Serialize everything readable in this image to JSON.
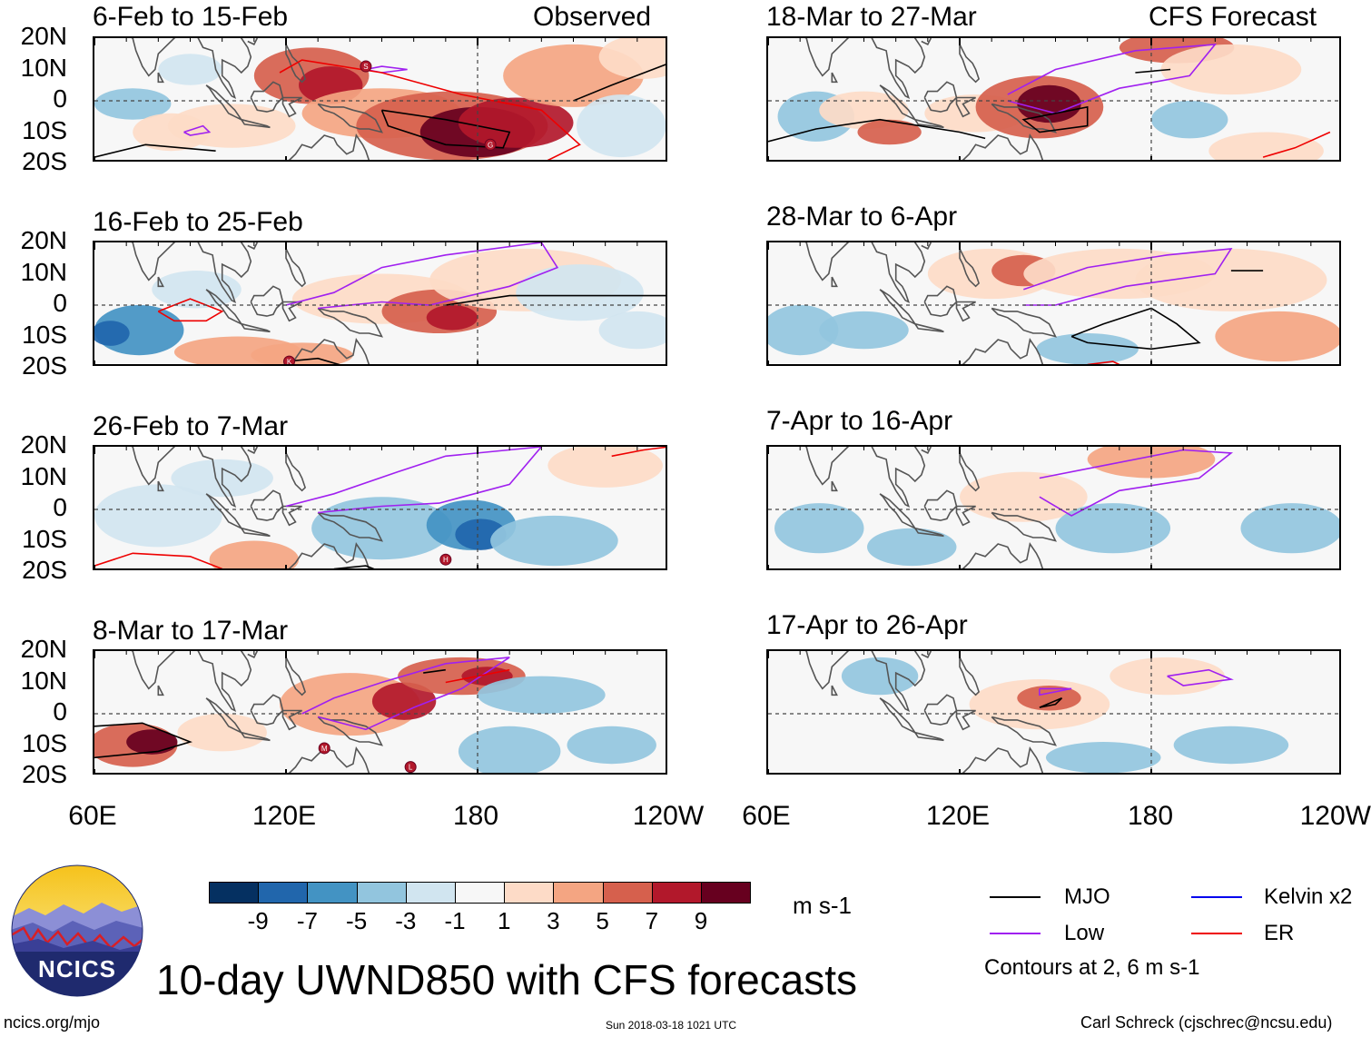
{
  "chart_data": {
    "type": "heatmap",
    "title": "10-day UWND850 with CFS forecasts",
    "variable": "850 hPa zonal wind anomaly",
    "units": "m s-1",
    "x_tick_labels": [
      "60E",
      "120E",
      "180",
      "120W"
    ],
    "y_tick_labels": [
      "20N",
      "10N",
      "0",
      "10S",
      "20S"
    ],
    "x_range_deg_east": [
      60,
      240
    ],
    "y_range_deg": [
      -20,
      20
    ],
    "colorbar": {
      "labels": [
        "-9",
        "-7",
        "-5",
        "-3",
        "-1",
        "1",
        "3",
        "5",
        "7",
        "9"
      ],
      "colors": [
        "#053061",
        "#2166ac",
        "#4393c3",
        "#92c5de",
        "#d1e5f0",
        "#f7f7f7",
        "#fddbc7",
        "#f4a582",
        "#d6604d",
        "#b2182b",
        "#67001f"
      ]
    },
    "columns": [
      {
        "header": "Observed",
        "panels": [
          {
            "title": "6-Feb to 15-Feb",
            "storms": [
              {
                "label": "S",
                "lon": 145,
                "lat": 11
              },
              {
                "label": "G",
                "lon": 184,
                "lat": -14
              }
            ]
          },
          {
            "title": "16-Feb to 25-Feb",
            "storms": [
              {
                "label": "K",
                "lon": 121,
                "lat": -18
              }
            ]
          },
          {
            "title": "26-Feb to 7-Mar",
            "storms": [
              {
                "label": "H",
                "lon": 170,
                "lat": -16
              }
            ]
          },
          {
            "title": "8-Mar to 17-Mar",
            "storms": [
              {
                "label": "M",
                "lon": 132,
                "lat": -11
              },
              {
                "label": "L",
                "lon": 159,
                "lat": -17
              }
            ]
          }
        ]
      },
      {
        "header": "CFS Forecast",
        "panels": [
          {
            "title": "18-Mar to 27-Mar",
            "storms": []
          },
          {
            "title": "28-Mar to 6-Apr",
            "storms": []
          },
          {
            "title": "7-Apr to 16-Apr",
            "storms": []
          },
          {
            "title": "17-Apr to 26-Apr",
            "storms": []
          }
        ]
      }
    ],
    "legend": {
      "entries": [
        {
          "name": "MJO",
          "color": "#000000"
        },
        {
          "name": "Kelvin x2",
          "color": "#0000ee"
        },
        {
          "name": "Low",
          "color": "#a020f0"
        },
        {
          "name": "ER",
          "color": "#ee0000"
        }
      ],
      "note": "Contours at 2, 6 m s-1"
    }
  },
  "footer": {
    "logo_text": "NCICS",
    "site": "ncics.org/mjo",
    "timestamp": "Sun 2018-03-18 1021 UTC",
    "author": "Carl Schreck (cjschrec@ncsu.edu)"
  }
}
